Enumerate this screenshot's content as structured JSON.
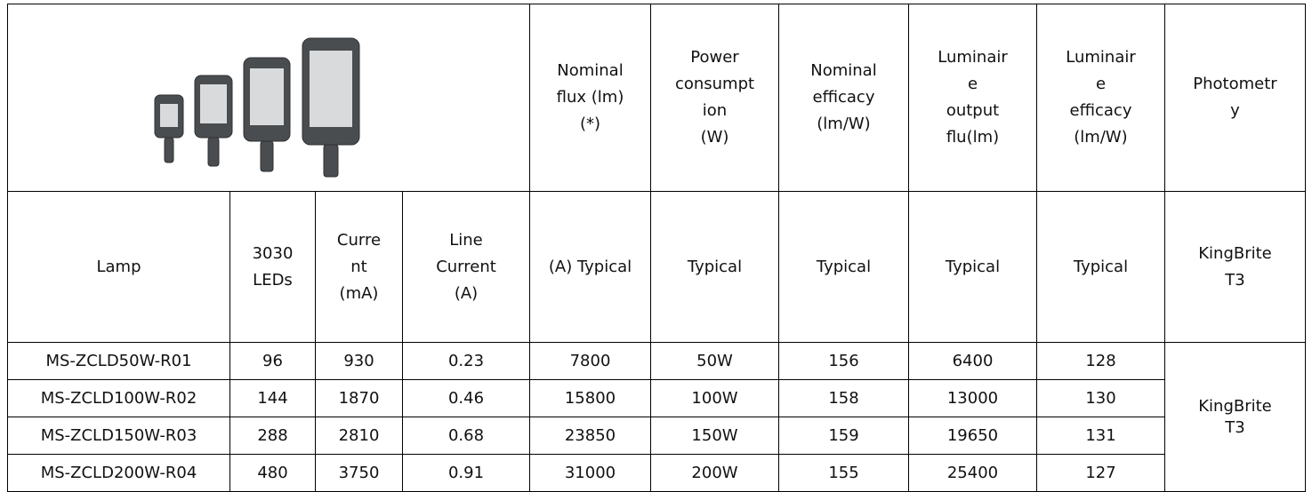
{
  "header_row": [
    "Nominal\nflux (lm)\n(*)",
    "Power\nconsumpt\nion\n(W)",
    "Nominal\nefficacy\n(lm/W)",
    "Luminair\ne\noutput\nflu(lm)",
    "Luminair\ne\nefficacy\n(lm/W)",
    "Photometr\ny"
  ],
  "subheader_row": [
    "Lamp",
    "3030\nLEDs",
    "Curre\nnt\n(mA)",
    "Line\nCurrent\n(A)",
    "(A) Typical",
    "Typical",
    "Typical",
    "Typical",
    "Typical",
    "KingBrite\nT3"
  ],
  "rows": [
    [
      "MS-ZCLD50W-R01",
      "96",
      "930",
      "0.23",
      "7800",
      "50W",
      "156",
      "6400",
      "128"
    ],
    [
      "MS-ZCLD100W-R02",
      "144",
      "1870",
      "0.46",
      "15800",
      "100W",
      "158",
      "13000",
      "130"
    ],
    [
      "MS-ZCLD150W-R03",
      "288",
      "2810",
      "0.68",
      "23850",
      "150W",
      "159",
      "19650",
      "131"
    ],
    [
      "MS-ZCLD200W-R04",
      "480",
      "3750",
      "0.91",
      "31000",
      "200W",
      "155",
      "25400",
      "127"
    ]
  ],
  "photometry": "KingBrite\nT3"
}
